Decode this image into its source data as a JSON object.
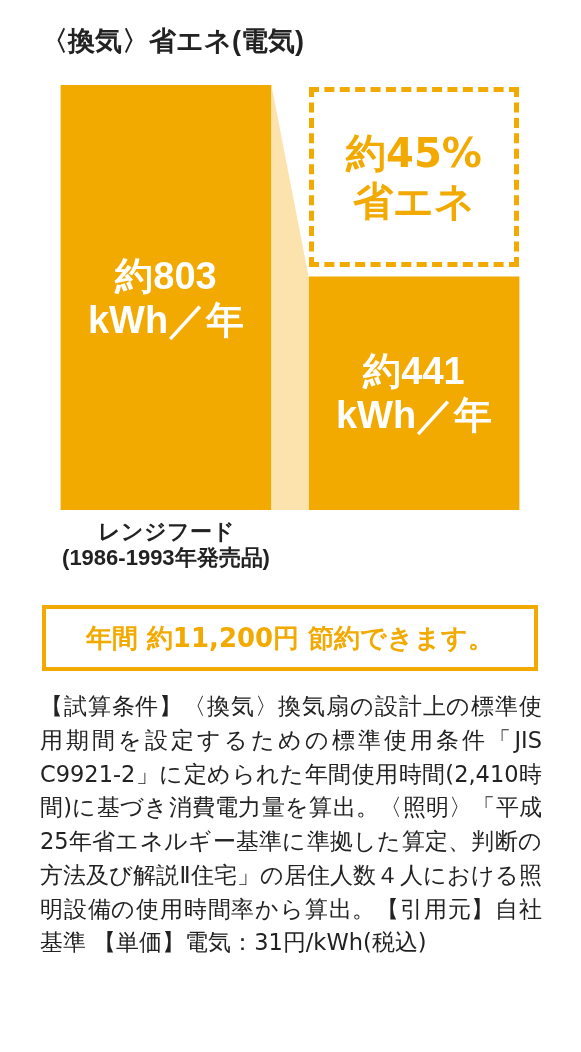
{
  "chart_data": {
    "type": "bar",
    "title": "〈換気〉省エネ(電気)",
    "categories": [
      "レンジフード\n(1986-1993年発売品)",
      null
    ],
    "values": [
      803,
      441
    ],
    "value_labels": [
      "約803\nkWh／年",
      "約441\nkWh／年"
    ],
    "color": "#f2a900",
    "annotations": [
      "約45%\n省エネ",
      "年間 約11,200円 節約できます。",
      "【試算条件】〈換気〉換気扇の設計上の標準使用期間を設定するための標準使用条件「JIS C9921-2」に定められた年間使用時間(2,410時間)に基づき消費電力量を算出。〈照明〉「平成25年省エネルギー基準に準拠した算定、判断の方法及び解説Ⅱ住宅」の居住人数４人における照明設備の使用時間率から算出。【引用元】自社基準 【単価】電気：31円/kWh(税込)"
    ]
  }
}
